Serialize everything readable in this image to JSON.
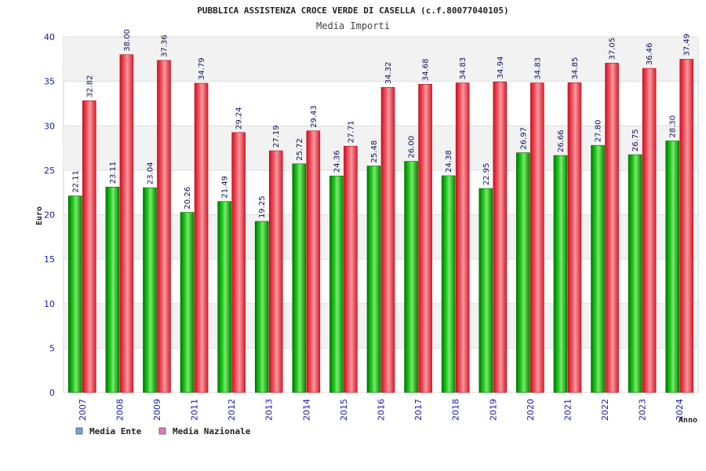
{
  "chart_data": {
    "type": "bar",
    "title": "PUBBLICA ASSISTENZA CROCE VERDE DI CASELLA (c.f.80077040105)",
    "subtitle": "Media Importi",
    "xlabel": "Anno",
    "ylabel": "Euro",
    "ylim": [
      0,
      40
    ],
    "yticks": [
      "0",
      "5",
      "10",
      "15",
      "20",
      "25",
      "30",
      "35",
      "40"
    ],
    "grid": true,
    "legend_position": "bottom-left",
    "categories": [
      "2007",
      "2008",
      "2009",
      "2011",
      "2012",
      "2013",
      "2014",
      "2015",
      "2016",
      "2017",
      "2018",
      "2019",
      "2020",
      "2021",
      "2022",
      "2023",
      "2024"
    ],
    "series": [
      {
        "name": "Media Ente",
        "color": "#00aa00",
        "legend_color": "#6aa6e8",
        "values": [
          22.11,
          23.11,
          23.04,
          20.26,
          21.49,
          19.25,
          25.72,
          24.36,
          25.48,
          26.0,
          24.38,
          22.95,
          26.97,
          26.66,
          27.8,
          26.75,
          28.3
        ],
        "labels": [
          "22.11",
          "23.11",
          "23.04",
          "20.26",
          "21.49",
          "19.25",
          "25.72",
          "24.36",
          "25.48",
          "26.00",
          "24.38",
          "22.95",
          "26.97",
          "26.66",
          "27.80",
          "26.75",
          "28.30"
        ]
      },
      {
        "name": "Media Nazionale",
        "color": "#ee2233",
        "legend_color": "#e07ab8",
        "values": [
          32.82,
          38.0,
          37.36,
          34.79,
          29.24,
          27.19,
          29.43,
          27.71,
          34.32,
          34.68,
          34.83,
          34.94,
          34.83,
          34.85,
          37.05,
          36.46,
          37.49
        ],
        "labels": [
          "32.82",
          "38.00",
          "37.36",
          "34.79",
          "29.24",
          "27.19",
          "29.43",
          "27.71",
          "34.32",
          "34.68",
          "34.83",
          "34.94",
          "34.83",
          "34.85",
          "37.05",
          "36.46",
          "37.49"
        ]
      }
    ]
  }
}
